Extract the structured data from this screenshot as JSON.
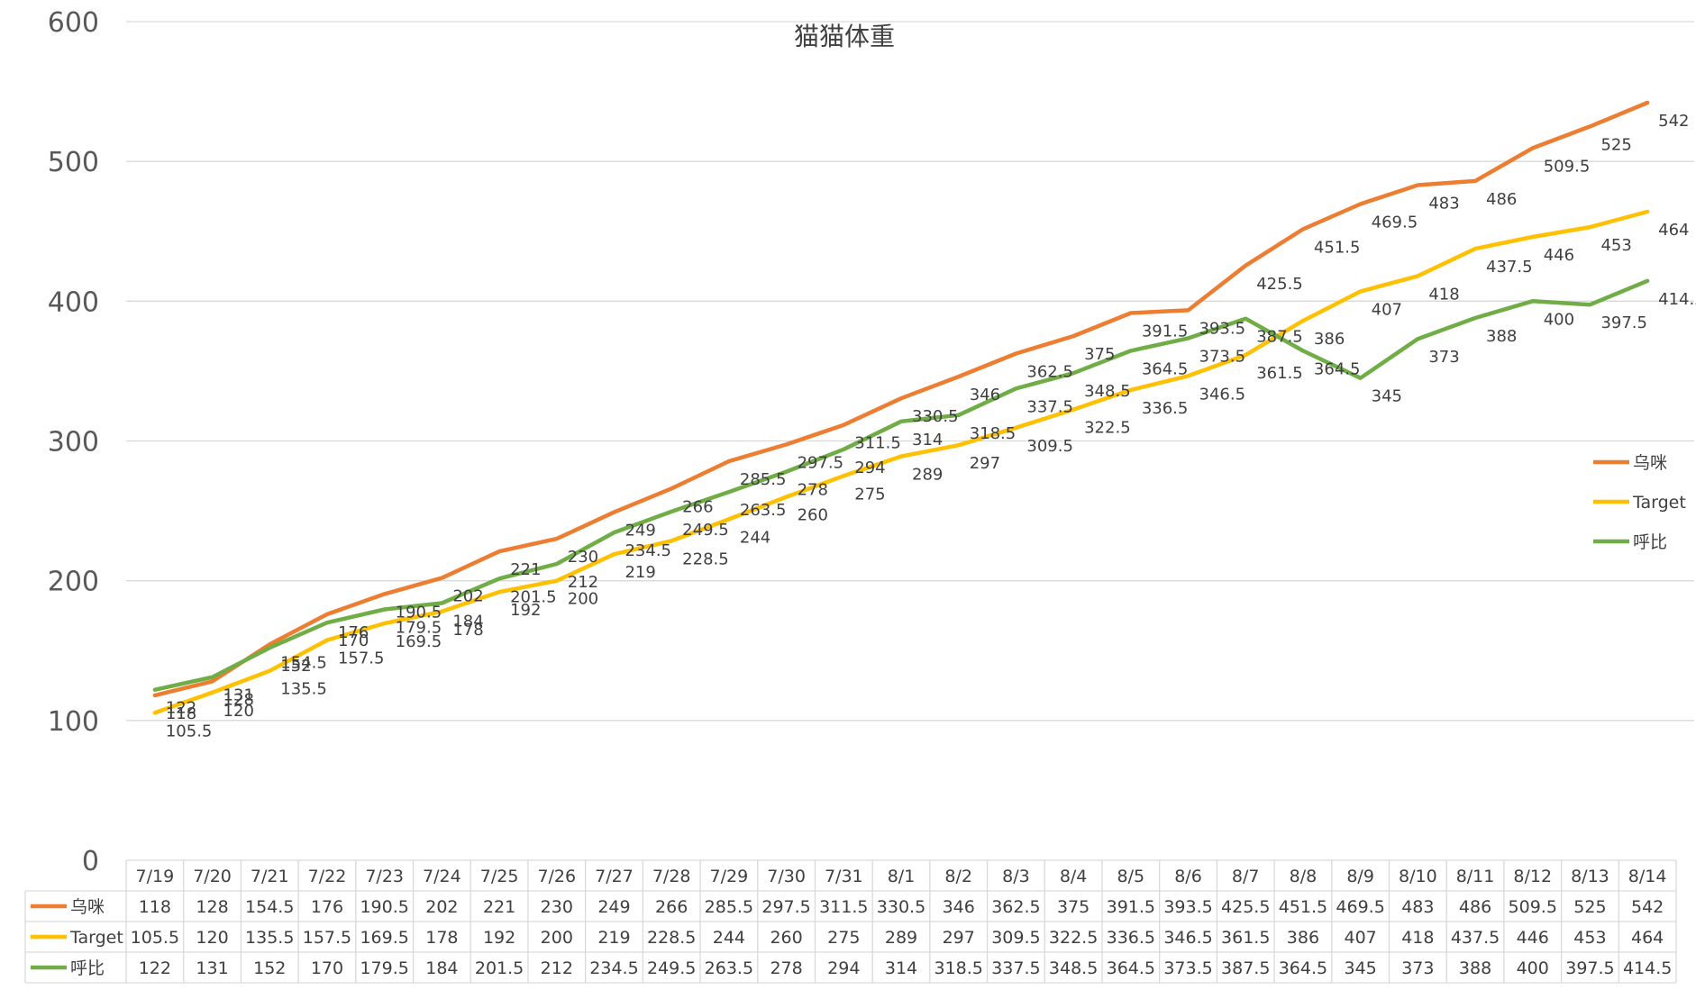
{
  "chart_data": {
    "type": "line",
    "title": "猫猫体重",
    "xlabel": "",
    "ylabel": "",
    "ylim": [
      0,
      600
    ],
    "yticks": [
      "0",
      "100",
      "200",
      "300",
      "400",
      "500",
      "600"
    ],
    "grid": true,
    "legend_position": "right",
    "data_table": true,
    "categories": [
      "7/19",
      "7/20",
      "7/21",
      "7/22",
      "7/23",
      "7/24",
      "7/25",
      "7/26",
      "7/27",
      "7/28",
      "7/29",
      "7/30",
      "7/31",
      "8/1",
      "8/2",
      "8/3",
      "8/4",
      "8/5",
      "8/6",
      "8/7",
      "8/8",
      "8/9",
      "8/10",
      "8/11",
      "8/12",
      "8/13",
      "8/14"
    ],
    "series": [
      {
        "name": "乌咪",
        "color": "#ED7D31",
        "values": [
          118,
          128,
          154.5,
          176,
          190.5,
          202,
          221,
          230,
          249,
          266,
          285.5,
          297.5,
          311.5,
          330.5,
          346,
          362.5,
          375,
          391.5,
          393.5,
          425.5,
          451.5,
          469.5,
          483,
          486,
          509.5,
          525,
          542
        ],
        "labels": [
          "118",
          "128",
          "154.5",
          "176",
          "190.5",
          "202",
          "221",
          "230",
          "249",
          "266",
          "285.5",
          "297.5",
          "311.5",
          "330.5",
          "346",
          "362.5",
          "375",
          "391.5",
          "393.5",
          "425.5",
          "451.5",
          "469.5",
          "483",
          "486",
          "509.5",
          "525",
          "542"
        ]
      },
      {
        "name": "Target",
        "color": "#FFC000",
        "values": [
          105.5,
          120,
          135.5,
          157.5,
          169.5,
          178,
          192,
          200,
          219,
          228.5,
          244,
          260,
          275,
          289,
          297,
          309.5,
          322.5,
          336.5,
          346.5,
          361.5,
          386,
          407,
          418,
          437.5,
          446,
          453,
          464
        ],
        "labels": [
          "105.5",
          "120",
          "135.5",
          "157.5",
          "169.5",
          "178",
          "192",
          "200",
          "219",
          "228.5",
          "244",
          "260",
          "275",
          "289",
          "297",
          "309.5",
          "322.5",
          "336.5",
          "346.5",
          "361.5",
          "386",
          "407",
          "418",
          "437.5",
          "446",
          "453",
          "464"
        ]
      },
      {
        "name": "呼比",
        "color": "#70AD47",
        "values": [
          122,
          131,
          152,
          170,
          179.5,
          184,
          201.5,
          212,
          234.5,
          249.5,
          263.5,
          278,
          294,
          314,
          318.5,
          337.5,
          348.5,
          364.5,
          373.5,
          387.5,
          364.5,
          345,
          373,
          388,
          400,
          397.5,
          414.5
        ],
        "labels": [
          "122",
          "131",
          "152",
          "170",
          "179.5",
          "184",
          "201.5",
          "212",
          "234.5",
          "249.5",
          "263.5",
          "278",
          "294",
          "314",
          "318.5",
          "337.5",
          "348.5",
          "364.5",
          "373.5",
          "387.5",
          "364.5",
          "345",
          "373",
          "388",
          "400",
          "397.5",
          "414.5"
        ]
      }
    ]
  }
}
